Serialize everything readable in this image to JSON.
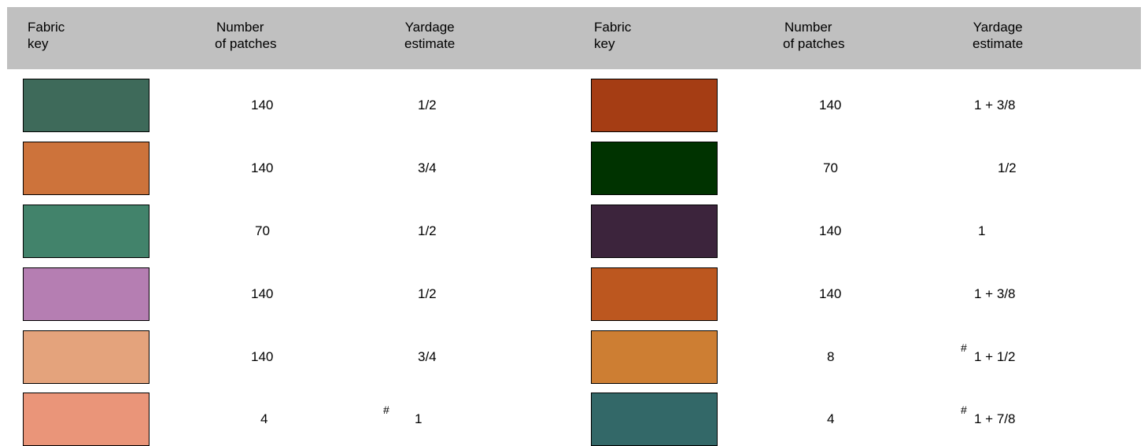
{
  "headers": {
    "fabric_key": [
      "Fabric",
      "key"
    ],
    "patches": [
      "Number",
      "of patches"
    ],
    "yardage": [
      "Yardage",
      "estimate"
    ]
  },
  "left_rows": [
    {
      "color": "#3e6a5a",
      "patches": "140",
      "mark": "",
      "yardage": "1/2"
    },
    {
      "color": "#cd733b",
      "patches": "140",
      "mark": "",
      "yardage": "3/4"
    },
    {
      "color": "#42836b",
      "patches": "70",
      "mark": "",
      "yardage": "1/2"
    },
    {
      "color": "#b57eb2",
      "patches": "140",
      "mark": "",
      "yardage": "1/2"
    },
    {
      "color": "#e4a37c",
      "patches": "140",
      "mark": "",
      "yardage": "3/4"
    },
    {
      "color": "#ea9579",
      "patches": "4",
      "mark": "#",
      "yardage": "1"
    }
  ],
  "right_rows": [
    {
      "color": "#a53d14",
      "patches": "140",
      "mark": "",
      "yardage": "1 + 3/8"
    },
    {
      "color": "#003300",
      "patches": "70",
      "mark": "",
      "yardage": "1/2"
    },
    {
      "color": "#3c243c",
      "patches": "140",
      "mark": "",
      "yardage": "1"
    },
    {
      "color": "#bc571f",
      "patches": "140",
      "mark": "",
      "yardage": "1 + 3/8"
    },
    {
      "color": "#cd7e33",
      "patches": "8",
      "mark": "#",
      "yardage": "1 + 1/2"
    },
    {
      "color": "#336868",
      "patches": "4",
      "mark": "#",
      "yardage": "1 + 7/8"
    }
  ]
}
